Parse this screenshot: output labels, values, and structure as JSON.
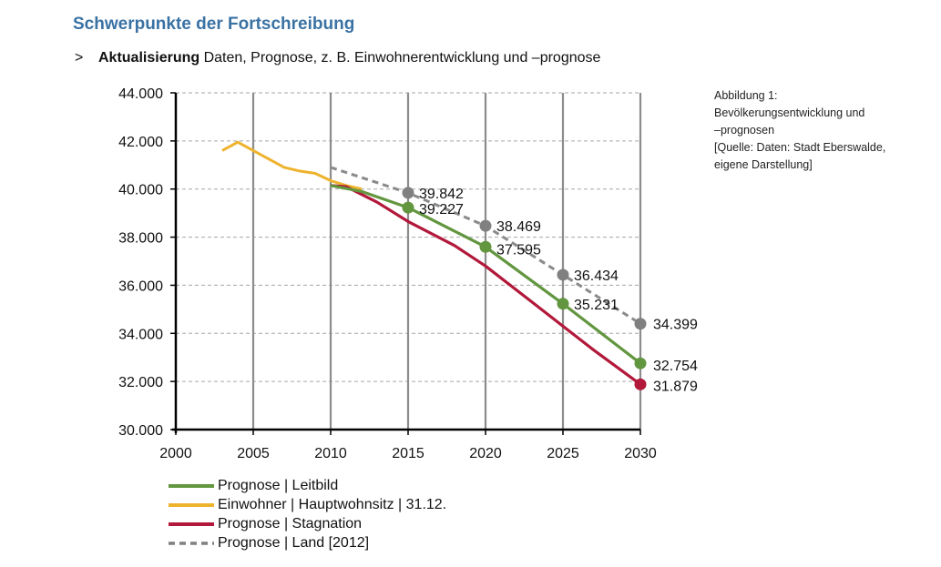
{
  "header": {
    "title": "Schwerpunkte der Fortschreibung",
    "bullet_marker": ">",
    "bullet_bold": "Aktualisierung",
    "bullet_text": " Daten, Prognose, z. B. Einwohnerentwicklung und –prognose"
  },
  "caption": {
    "lines": [
      "Abbildung 1:",
      "Bevölkerungsentwicklung und",
      "–prognosen",
      "[Quelle: Daten: Stadt Eberswalde,",
      "eigene Darstellung]"
    ]
  },
  "colors": {
    "leitbild": "#62963f",
    "einwohner": "#eeb32d",
    "stagnation": "#b2183a",
    "land": "#808080",
    "land_fade": "#c8c8c8",
    "grid_major": "#8c8c8c",
    "grid_minor": "#a6a6a6"
  },
  "chart_data": {
    "type": "line",
    "title": "",
    "xlabel": "",
    "ylabel": "",
    "xlim": [
      2000,
      2030
    ],
    "ylim": [
      30000,
      44000
    ],
    "x_ticks": [
      "2000",
      "2005",
      "2010",
      "2015",
      "2020",
      "2025",
      "2030"
    ],
    "x_tick_values": [
      2000,
      2005,
      2010,
      2015,
      2020,
      2025,
      2030
    ],
    "y_ticks": [
      "30.000",
      "32.000",
      "34.000",
      "36.000",
      "38.000",
      "40.000",
      "42.000",
      "44.000"
    ],
    "y_tick_values": [
      30000,
      32000,
      34000,
      36000,
      38000,
      40000,
      42000,
      44000
    ],
    "grid": "vertical solid at x ticks, horizontal dashed at y ticks",
    "legend_position": "bottom-left",
    "series": [
      {
        "key": "leitbild",
        "name": "Prognose | Leitbild",
        "style": "solid",
        "color": "#62963f",
        "x": [
          2010,
          2012,
          2015,
          2020,
          2025,
          2030
        ],
        "y": [
          40150,
          39900,
          39227,
          37595,
          35231,
          32754
        ],
        "markers": [
          {
            "x": 2015,
            "y": 39227,
            "label": "39.227"
          },
          {
            "x": 2020,
            "y": 37595,
            "label": "37.595"
          },
          {
            "x": 2025,
            "y": 35231,
            "label": "35.231"
          },
          {
            "x": 2030,
            "y": 32754,
            "label": "32.754"
          }
        ]
      },
      {
        "key": "einwohner",
        "name": "Einwohner | Hauptwohnsitz | 31.12.",
        "style": "solid",
        "color": "#eeb32d",
        "x": [
          2003,
          2004,
          2005,
          2006,
          2007,
          2008,
          2009,
          2010,
          2011,
          2012
        ],
        "y": [
          41600,
          41950,
          41600,
          41250,
          40900,
          40750,
          40650,
          40350,
          40150,
          40000
        ],
        "markers": []
      },
      {
        "key": "stagnation",
        "name": "Prognose | Stagnation",
        "style": "solid",
        "color": "#b2183a",
        "x": [
          2010,
          2011,
          2013,
          2015,
          2018,
          2020,
          2023,
          2025,
          2027,
          2030
        ],
        "y": [
          40150,
          40100,
          39450,
          38650,
          37650,
          36800,
          35300,
          34300,
          33300,
          31879
        ],
        "markers": [
          {
            "x": 2030,
            "y": 31879,
            "label": "31.879"
          }
        ]
      },
      {
        "key": "land",
        "name": "Prognose | Land [2012]",
        "style": "dashed",
        "color": "#808080",
        "x": [
          2010,
          2015,
          2020,
          2025,
          2030
        ],
        "y": [
          40900,
          39842,
          38469,
          36434,
          34399
        ],
        "markers": [
          {
            "x": 2015,
            "y": 39842,
            "label": "39.842"
          },
          {
            "x": 2020,
            "y": 38469,
            "label": "38.469"
          },
          {
            "x": 2025,
            "y": 36434,
            "label": "36.434"
          },
          {
            "x": 2030,
            "y": 34399,
            "label": "34.399"
          }
        ]
      }
    ]
  }
}
